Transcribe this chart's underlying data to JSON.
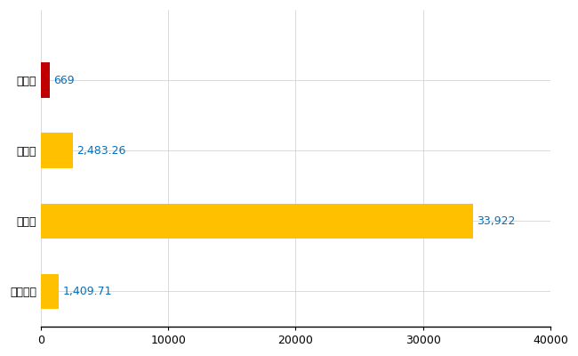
{
  "categories": [
    "全国平均",
    "県最大",
    "県平均",
    "蟹江町"
  ],
  "values": [
    1409.71,
    33922,
    2483.26,
    669
  ],
  "colors": [
    "#FFC000",
    "#FFC000",
    "#FFC000",
    "#C00000"
  ],
  "labels": [
    "1,409.71",
    "33,922",
    "2,483.26",
    "669"
  ],
  "xlim": [
    0,
    40000
  ],
  "xticks": [
    0,
    10000,
    20000,
    30000,
    40000
  ],
  "xtick_labels": [
    "0",
    "10000",
    "20000",
    "30000",
    "40000"
  ],
  "grid_color": "#CCCCCC",
  "bar_height": 0.5,
  "label_fontsize": 9,
  "tick_fontsize": 9,
  "label_color": "#0070C0",
  "figsize": [
    6.5,
    4.0
  ],
  "dpi": 100
}
